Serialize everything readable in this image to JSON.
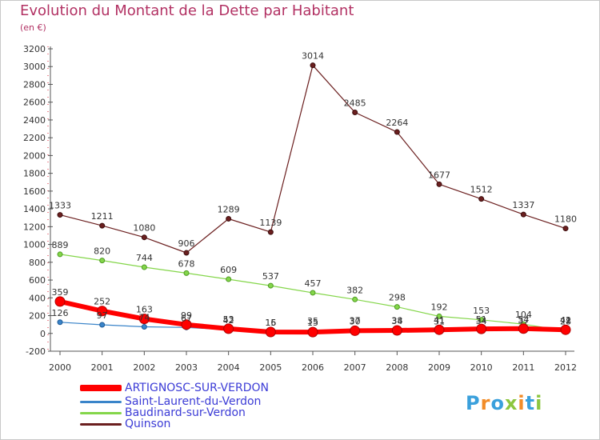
{
  "title": "Evolution du Montant de la Dette par Habitant",
  "subtitle": "(en €)",
  "logo": {
    "letters": [
      "P",
      "r",
      "o",
      "x",
      "i",
      "t",
      "i"
    ],
    "colors": [
      "#3aa0dc",
      "#f28c28",
      "#3aa0dc",
      "#8cc63f",
      "#f28c28",
      "#3aa0dc",
      "#8cc63f"
    ]
  },
  "chart_data": {
    "type": "line",
    "x": [
      "2000",
      "2001",
      "2002",
      "2003",
      "2004",
      "2005",
      "2006",
      "2007",
      "2008",
      "2009",
      "2010",
      "2011",
      "2012"
    ],
    "ylim": [
      -200,
      3200
    ],
    "yticks": [
      "-200",
      "0",
      "200",
      "400",
      "600",
      "800",
      "1000",
      "1200",
      "1400",
      "1600",
      "1800",
      "2000",
      "2200",
      "2400",
      "2600",
      "2800",
      "3000",
      "3200"
    ],
    "grid": false,
    "legend_position": "bottom-left",
    "series": [
      {
        "name": "ARTIGNOSC-SUR-VERDON",
        "color": "#ff0000",
        "values": [
          359,
          252,
          163,
          99,
          53,
          16,
          15,
          30,
          34,
          41,
          51,
          54,
          41
        ],
        "labels": [
          "359",
          "252",
          "163",
          "99",
          "53",
          "16",
          "15",
          "30",
          "34",
          "41",
          "51",
          "54",
          "41"
        ]
      },
      {
        "name": "Saint-Laurent-du-Verdon",
        "color": "#3a84c9",
        "values": [
          126,
          97,
          74,
          67,
          42,
          15,
          35,
          37,
          38,
          31,
          34,
          37,
          42
        ],
        "labels": [
          "126",
          "97",
          "74",
          "67",
          "42",
          "15",
          "35",
          "37",
          "38",
          "31",
          "34",
          "37",
          "42"
        ]
      },
      {
        "name": "Baudinard-sur-Verdon",
        "color": "#84d64a",
        "values": [
          889,
          820,
          744,
          678,
          609,
          537,
          457,
          382,
          298,
          192,
          153,
          104,
          28
        ],
        "labels": [
          "889",
          "820",
          "744",
          "678",
          "609",
          "537",
          "457",
          "382",
          "298",
          "192",
          "153",
          "104",
          "28"
        ]
      },
      {
        "name": "Quinson",
        "color": "#6b1f1f",
        "values": [
          1333,
          1211,
          1080,
          906,
          1289,
          1139,
          3014,
          2485,
          2264,
          1677,
          1512,
          1337,
          1180
        ],
        "labels": [
          "1333",
          "1211",
          "1080",
          "906",
          "1289",
          "1139",
          "3014",
          "2485",
          "2264",
          "1677",
          "1512",
          "1337",
          "1180"
        ]
      }
    ]
  }
}
